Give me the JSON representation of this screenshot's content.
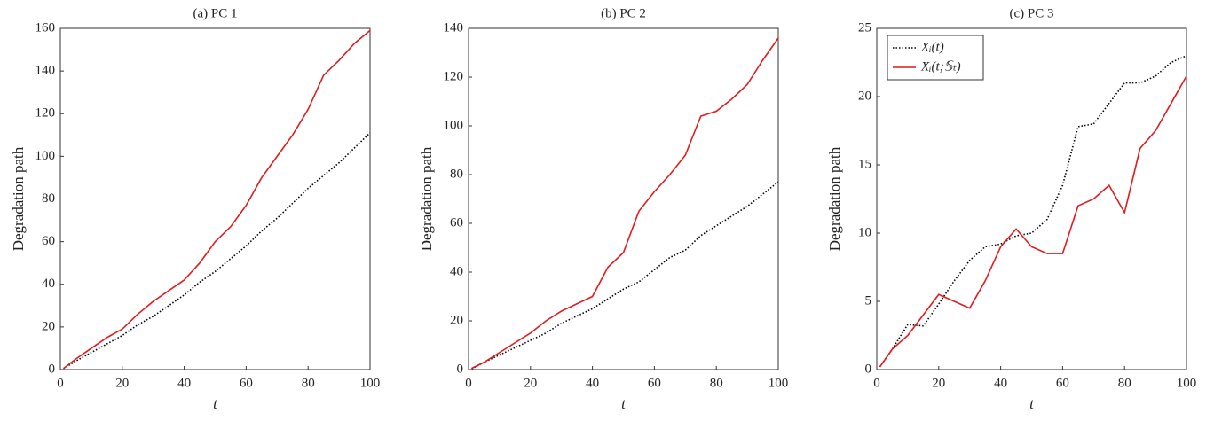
{
  "chart_data": [
    {
      "type": "line",
      "title": "(a) PC 1",
      "x_label": "t",
      "y_label": "Degradation path",
      "x": [
        1,
        5,
        10,
        15,
        20,
        25,
        30,
        35,
        40,
        45,
        50,
        55,
        60,
        65,
        70,
        75,
        80,
        85,
        90,
        95,
        100
      ],
      "series": [
        {
          "color": "#000000",
          "dash": "dotted",
          "values": [
            0.5,
            4,
            8,
            12,
            16,
            21,
            25,
            30,
            35,
            41,
            46,
            52,
            58,
            65,
            71,
            78,
            85,
            91,
            97,
            104,
            111
          ]
        },
        {
          "color": "#e41a1c",
          "dash": "solid",
          "values": [
            0.5,
            5,
            10,
            15,
            19,
            26,
            32,
            37,
            42,
            50,
            60,
            67,
            77,
            90,
            100,
            110,
            122,
            138,
            145,
            153,
            159
          ]
        }
      ],
      "xlim": [
        0,
        100
      ],
      "xticks": [
        0,
        20,
        40,
        60,
        80,
        100
      ],
      "ylim": [
        0,
        160
      ],
      "yticks": [
        0,
        20,
        40,
        60,
        80,
        100,
        120,
        140,
        160
      ]
    },
    {
      "type": "line",
      "title": "(b) PC 2",
      "x_label": "t",
      "y_label": "Degradation path",
      "x": [
        1,
        5,
        10,
        15,
        20,
        25,
        30,
        35,
        40,
        45,
        50,
        55,
        60,
        65,
        70,
        75,
        80,
        85,
        90,
        95,
        100
      ],
      "series": [
        {
          "color": "#000000",
          "dash": "dotted",
          "values": [
            0.3,
            3,
            6,
            9,
            12,
            15,
            19,
            22,
            25,
            29,
            33,
            36,
            41,
            46,
            49,
            55,
            59,
            63,
            67,
            72,
            77
          ]
        },
        {
          "color": "#e41a1c",
          "dash": "solid",
          "values": [
            0.5,
            3,
            7,
            11,
            15,
            20,
            24,
            27,
            30,
            42,
            48,
            65,
            73,
            80,
            88,
            104,
            106,
            111,
            117,
            127,
            136
          ]
        }
      ],
      "xlim": [
        0,
        100
      ],
      "xticks": [
        0,
        20,
        40,
        60,
        80,
        100
      ],
      "ylim": [
        0,
        140
      ],
      "yticks": [
        0,
        20,
        40,
        60,
        80,
        100,
        120,
        140
      ]
    },
    {
      "type": "line",
      "title": "(c) PC 3",
      "x_label": "t",
      "y_label": "Degradation path",
      "x": [
        1,
        5,
        10,
        15,
        20,
        25,
        30,
        35,
        40,
        45,
        50,
        55,
        60,
        65,
        70,
        75,
        80,
        85,
        90,
        95,
        100
      ],
      "series": [
        {
          "name": "Xᵢ(t)",
          "color": "#000000",
          "dash": "dotted",
          "values": [
            0.2,
            1.5,
            3.3,
            3.2,
            4.8,
            6.5,
            8,
            9,
            9.2,
            9.8,
            10,
            11,
            13.5,
            17.8,
            18,
            19.5,
            21,
            21,
            21.5,
            22.5,
            23
          ]
        },
        {
          "name": "Xᵢ(t;𝕊ₜ)",
          "color": "#e41a1c",
          "dash": "solid",
          "values": [
            0.2,
            1.5,
            2.5,
            4,
            5.5,
            5,
            4.5,
            6.5,
            9,
            10.3,
            9,
            8.5,
            8.5,
            12,
            12.5,
            13.5,
            11.5,
            16.2,
            17.5,
            19.5,
            21.5
          ]
        }
      ],
      "xlim": [
        0,
        100
      ],
      "xticks": [
        0,
        20,
        40,
        60,
        80,
        100
      ],
      "ylim": [
        0,
        25
      ],
      "yticks": [
        0,
        5,
        10,
        15,
        20,
        25
      ],
      "legend": "upper left"
    }
  ]
}
